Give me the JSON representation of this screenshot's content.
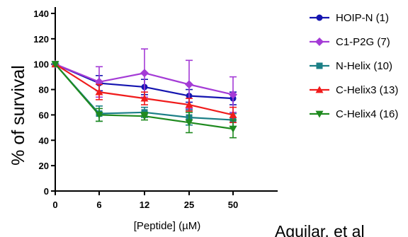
{
  "chart_data": {
    "type": "line",
    "xlabel": "[Peptide] (µM)",
    "ylabel": "% of survival",
    "x": [
      "0",
      "6",
      "12",
      "25",
      "50"
    ],
    "yticks": [
      0,
      20,
      40,
      60,
      80,
      100,
      120,
      140
    ],
    "ylim": [
      0,
      145
    ],
    "grid": false,
    "legend_position": "right",
    "annotation": "Aguilar, et al",
    "series": [
      {
        "name": "HOIP-N (1)",
        "color": "#1515b0",
        "marker": "circle",
        "values": [
          100,
          85,
          82,
          75,
          73
        ],
        "err": [
          0,
          6,
          6,
          5,
          5
        ]
      },
      {
        "name": "C1-P2G (7)",
        "color": "#a43bd6",
        "marker": "diamond",
        "values": [
          100,
          86,
          93,
          84,
          76
        ],
        "err": [
          0,
          12,
          19,
          19,
          14
        ]
      },
      {
        "name": "N-Helix (10)",
        "color": "#1b7f86",
        "marker": "square",
        "values": [
          100,
          61,
          62,
          58,
          56
        ],
        "err": [
          0,
          6,
          4,
          6,
          5
        ]
      },
      {
        "name": "C-Helix3 (13)",
        "color": "#f01c1c",
        "marker": "triangle-up",
        "values": [
          100,
          78,
          73,
          68,
          60
        ],
        "err": [
          0,
          6,
          5,
          5,
          6
        ]
      },
      {
        "name": "C-Helix4 (16)",
        "color": "#1f8a1f",
        "marker": "triangle-down",
        "values": [
          100,
          60,
          59,
          54,
          49
        ],
        "err": [
          0,
          5,
          3,
          8,
          7
        ]
      }
    ]
  }
}
